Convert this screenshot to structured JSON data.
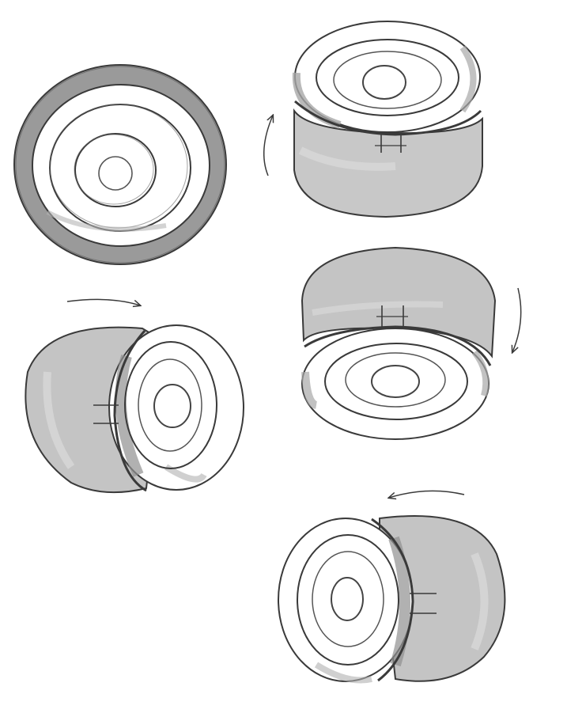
{
  "palette": {
    "paper": "#ffffff",
    "ink": "#3a3a3a",
    "shade_dark": "#8f8f8f",
    "shade_mid": "#b5b5b5",
    "shade_light": "#cdcdcd",
    "shade_pale": "#e4e4e4"
  },
  "figures": [
    {
      "id": "top-view",
      "description_icon": "concentric-rings-icon"
    },
    {
      "id": "tilt-up",
      "description_icon": "drum-icon",
      "arrow": "curved-arrow-up-icon"
    },
    {
      "id": "tilt-down",
      "description_icon": "drum-icon",
      "arrow": "curved-arrow-down-icon"
    },
    {
      "id": "turn-right",
      "description_icon": "drum-icon",
      "arrow": "arrow-right-icon"
    },
    {
      "id": "turn-left",
      "description_icon": "drum-icon",
      "arrow": "arrow-left-icon"
    }
  ]
}
